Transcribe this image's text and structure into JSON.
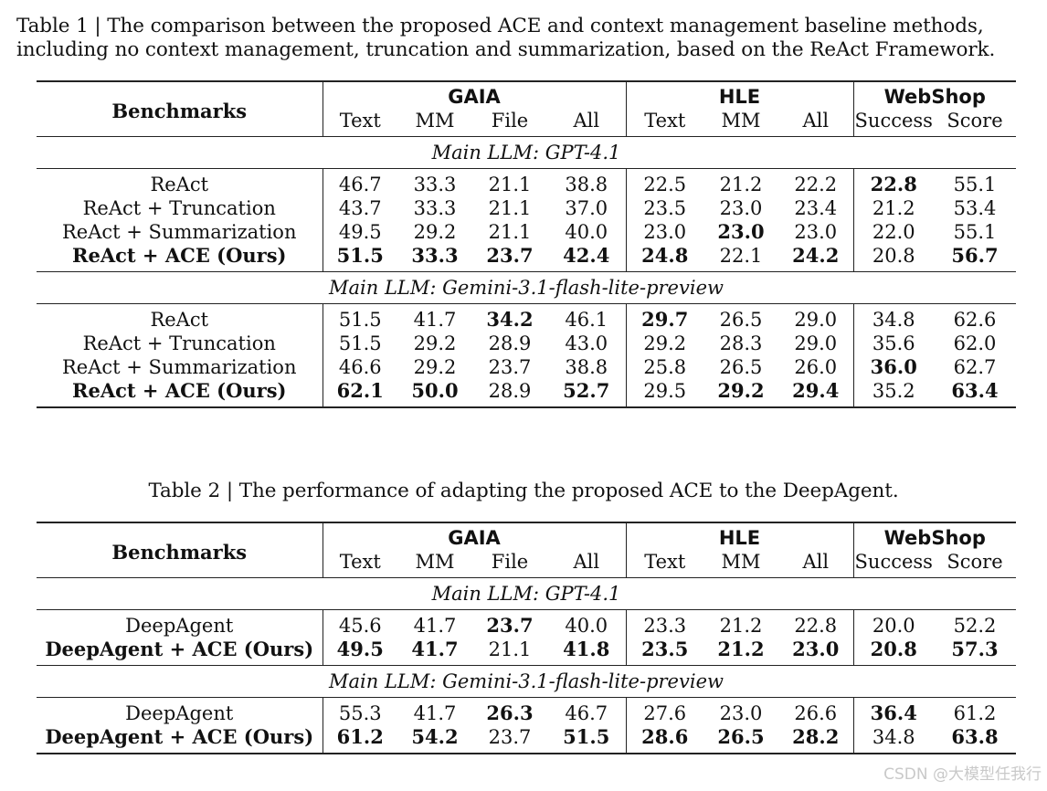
{
  "table1": {
    "caption": "Table 1 | The comparison between the proposed ACE and context management baseline methods, including no context management, truncation and summarization, based on the ReAct Framework.",
    "header": {
      "benchmarks": "Benchmarks",
      "groups": [
        "GAIA",
        "HLE",
        "WebShop"
      ],
      "columns": [
        "Text",
        "MM",
        "File",
        "All",
        "Text",
        "MM",
        "All",
        "Success",
        "Score"
      ]
    },
    "sections": [
      {
        "title": "Main LLM: GPT-4.1",
        "rows": [
          {
            "method": "ReAct",
            "bold_method": false,
            "values": [
              "46.7",
              "33.3",
              "21.1",
              "38.8",
              "22.5",
              "21.2",
              "22.2",
              "22.8",
              "55.1"
            ],
            "bold": [
              false,
              false,
              false,
              false,
              false,
              false,
              false,
              true,
              false
            ]
          },
          {
            "method": "ReAct + Truncation",
            "bold_method": false,
            "values": [
              "43.7",
              "33.3",
              "21.1",
              "37.0",
              "23.5",
              "23.0",
              "23.4",
              "21.2",
              "53.4"
            ],
            "bold": [
              false,
              false,
              false,
              false,
              false,
              false,
              false,
              false,
              false
            ]
          },
          {
            "method": "ReAct + Summarization",
            "bold_method": false,
            "values": [
              "49.5",
              "29.2",
              "21.1",
              "40.0",
              "23.0",
              "23.0",
              "23.0",
              "22.0",
              "55.1"
            ],
            "bold": [
              false,
              false,
              false,
              false,
              false,
              true,
              false,
              false,
              false
            ]
          },
          {
            "method": "ReAct + ACE (Ours)",
            "bold_method": true,
            "values": [
              "51.5",
              "33.3",
              "23.7",
              "42.4",
              "24.8",
              "22.1",
              "24.2",
              "20.8",
              "56.7"
            ],
            "bold": [
              true,
              true,
              true,
              true,
              true,
              false,
              true,
              false,
              true
            ]
          }
        ]
      },
      {
        "title": "Main LLM: Gemini-3.1-flash-lite-preview",
        "rows": [
          {
            "method": "ReAct",
            "bold_method": false,
            "values": [
              "51.5",
              "41.7",
              "34.2",
              "46.1",
              "29.7",
              "26.5",
              "29.0",
              "34.8",
              "62.6"
            ],
            "bold": [
              false,
              false,
              true,
              false,
              true,
              false,
              false,
              false,
              false
            ]
          },
          {
            "method": "ReAct + Truncation",
            "bold_method": false,
            "values": [
              "51.5",
              "29.2",
              "28.9",
              "43.0",
              "29.2",
              "28.3",
              "29.0",
              "35.6",
              "62.0"
            ],
            "bold": [
              false,
              false,
              false,
              false,
              false,
              false,
              false,
              false,
              false
            ]
          },
          {
            "method": "ReAct + Summarization",
            "bold_method": false,
            "values": [
              "46.6",
              "29.2",
              "23.7",
              "38.8",
              "25.8",
              "26.5",
              "26.0",
              "36.0",
              "62.7"
            ],
            "bold": [
              false,
              false,
              false,
              false,
              false,
              false,
              false,
              true,
              false
            ]
          },
          {
            "method": "ReAct + ACE (Ours)",
            "bold_method": true,
            "values": [
              "62.1",
              "50.0",
              "28.9",
              "52.7",
              "29.5",
              "29.2",
              "29.4",
              "35.2",
              "63.4"
            ],
            "bold": [
              true,
              true,
              false,
              true,
              false,
              true,
              true,
              false,
              true
            ]
          }
        ]
      }
    ]
  },
  "table2": {
    "caption": "Table 2 | The performance of adapting the proposed ACE to the DeepAgent.",
    "header": {
      "benchmarks": "Benchmarks",
      "groups": [
        "GAIA",
        "HLE",
        "WebShop"
      ],
      "columns": [
        "Text",
        "MM",
        "File",
        "All",
        "Text",
        "MM",
        "All",
        "Success",
        "Score"
      ]
    },
    "sections": [
      {
        "title": "Main LLM: GPT-4.1",
        "rows": [
          {
            "method": "DeepAgent",
            "bold_method": false,
            "values": [
              "45.6",
              "41.7",
              "23.7",
              "40.0",
              "23.3",
              "21.2",
              "22.8",
              "20.0",
              "52.2"
            ],
            "bold": [
              false,
              false,
              true,
              false,
              false,
              false,
              false,
              false,
              false
            ]
          },
          {
            "method": "DeepAgent + ACE (Ours)",
            "bold_method": true,
            "values": [
              "49.5",
              "41.7",
              "21.1",
              "41.8",
              "23.5",
              "21.2",
              "23.0",
              "20.8",
              "57.3"
            ],
            "bold": [
              true,
              true,
              false,
              true,
              true,
              true,
              true,
              true,
              true
            ]
          }
        ]
      },
      {
        "title": "Main LLM: Gemini-3.1-flash-lite-preview",
        "rows": [
          {
            "method": "DeepAgent",
            "bold_method": false,
            "values": [
              "55.3",
              "41.7",
              "26.3",
              "46.7",
              "27.6",
              "23.0",
              "26.6",
              "36.4",
              "61.2"
            ],
            "bold": [
              false,
              false,
              true,
              false,
              false,
              false,
              false,
              true,
              false
            ]
          },
          {
            "method": "DeepAgent + ACE (Ours)",
            "bold_method": true,
            "values": [
              "61.2",
              "54.2",
              "23.7",
              "51.5",
              "28.6",
              "26.5",
              "28.2",
              "34.8",
              "63.8"
            ],
            "bold": [
              true,
              true,
              false,
              true,
              true,
              true,
              true,
              false,
              true
            ]
          }
        ]
      }
    ]
  },
  "watermark": "CSDN @大模型任我行"
}
